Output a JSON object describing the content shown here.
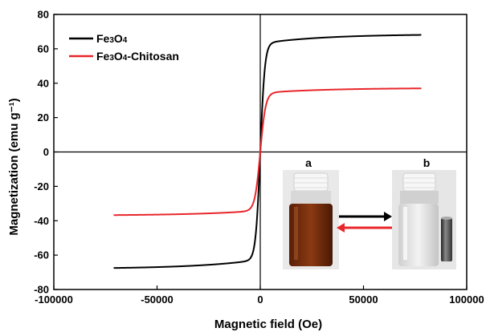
{
  "chart_data": {
    "type": "line",
    "xlabel": "Magnetic field (Oe)",
    "ylabel": "Magnetization (emu g⁻¹)",
    "xlim": [
      -100000,
      100000
    ],
    "ylim": [
      -80,
      80
    ],
    "xticks": [
      -100000,
      -50000,
      0,
      50000,
      100000
    ],
    "yticks": [
      -80,
      -60,
      -40,
      -20,
      0,
      20,
      40,
      60,
      80
    ],
    "legend_position": "top-left",
    "series": [
      {
        "name": "Fe3O4",
        "label_parts": [
          "Fe",
          "3",
          "O",
          "4",
          ""
        ],
        "color": "#000000",
        "ms": 68.5,
        "ms_neg": 68.0,
        "h": 2200,
        "slope": 4e-05,
        "x_range": [
          -71000,
          78000
        ]
      },
      {
        "name": "Fe3O4-Chitosan",
        "label_parts": [
          "Fe",
          "3",
          "O",
          "4",
          "-Chitosan"
        ],
        "color": "#e8262a",
        "ms": 37.2,
        "ms_neg": 37.0,
        "h": 2600,
        "slope": 4e-05,
        "x_range": [
          -71000,
          78000
        ]
      }
    ],
    "inset": {
      "labels": [
        "a",
        "b"
      ],
      "arrow_colors": [
        "#000000",
        "#e8262a"
      ]
    }
  }
}
